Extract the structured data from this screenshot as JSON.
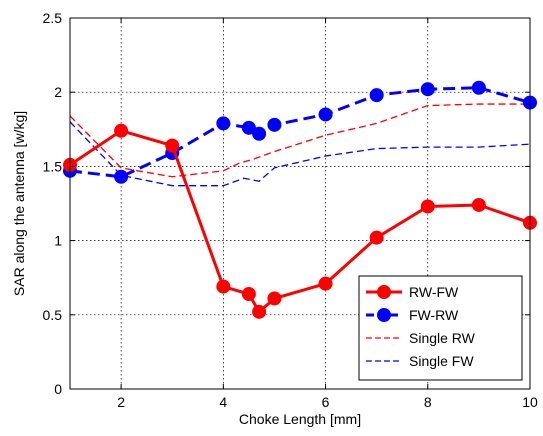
{
  "chart_data": {
    "type": "line",
    "xlabel": "Choke Length [mm]",
    "ylabel": "SAR along the antenna [w/kg]",
    "xlim": [
      1,
      10
    ],
    "ylim": [
      0,
      2.5
    ],
    "x_ticks": [
      2,
      4,
      6,
      8,
      10
    ],
    "y_ticks": [
      0,
      0.5,
      1,
      1.5,
      2,
      2.5
    ],
    "x_tick_labels": [
      "2",
      "4",
      "6",
      "8",
      "10"
    ],
    "y_tick_labels": [
      "0",
      "0.5",
      "1",
      "1.5",
      "2",
      "2.5"
    ],
    "grid": true,
    "legend_position": "bottom-right",
    "series": [
      {
        "name": "RW-FW",
        "color": "#ff0000",
        "style": "solid-markers",
        "x": [
          1,
          2,
          3,
          4,
          4.5,
          4.7,
          5,
          6,
          7,
          8,
          9,
          10
        ],
        "y": [
          1.51,
          1.74,
          1.64,
          0.69,
          0.64,
          0.52,
          0.61,
          0.71,
          1.02,
          1.23,
          1.24,
          1.12
        ]
      },
      {
        "name": "FW-RW",
        "color": "#0000ff",
        "style": "dashed-markers",
        "x": [
          1,
          2,
          3,
          4,
          4.5,
          4.7,
          5,
          6,
          7,
          8,
          9,
          10
        ],
        "y": [
          1.47,
          1.43,
          1.59,
          1.79,
          1.76,
          1.72,
          1.78,
          1.85,
          1.98,
          2.02,
          2.03,
          1.93
        ]
      },
      {
        "name": "Single RW",
        "color": "#ff0000",
        "style": "dashed",
        "x": [
          1,
          2,
          3,
          4,
          4.3,
          4.6,
          5,
          6,
          7,
          8,
          9,
          10
        ],
        "y": [
          1.84,
          1.49,
          1.43,
          1.47,
          1.52,
          1.55,
          1.6,
          1.71,
          1.79,
          1.91,
          1.92,
          1.92
        ]
      },
      {
        "name": "Single FW",
        "color": "#0000ff",
        "style": "dashed",
        "x": [
          1,
          2,
          3,
          4,
          4.4,
          4.7,
          5,
          6,
          7,
          8,
          9,
          10
        ],
        "y": [
          1.8,
          1.44,
          1.37,
          1.37,
          1.42,
          1.4,
          1.49,
          1.57,
          1.62,
          1.63,
          1.63,
          1.65
        ]
      }
    ]
  }
}
